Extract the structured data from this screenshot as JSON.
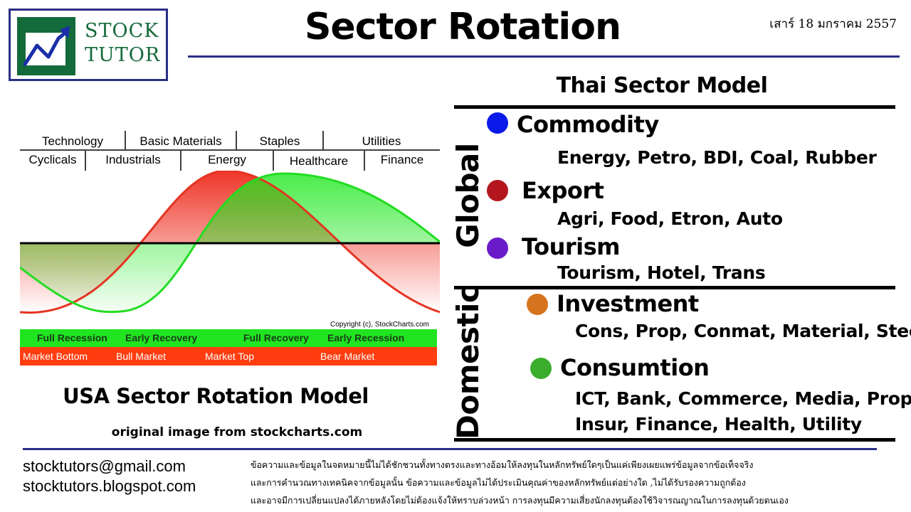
{
  "logo": {
    "line1": "STOCK",
    "line2": "TUTOR",
    "icon": "rising-chart-arrow-icon"
  },
  "title": "Sector Rotation",
  "date": "เสาร์ 18 มกราคม 2557",
  "usa_model": {
    "sectors_top": [
      "Technology",
      "Basic Materials",
      "Staples",
      "Utilities"
    ],
    "sectors_bottom": [
      "Cyclicals",
      "Industrials",
      "Energy",
      "Healthcare",
      "Finance"
    ],
    "copyright": "Copyright (c), StockCharts.com",
    "phases": [
      "Full Recession",
      "Early Recovery",
      "Full Recovery",
      "Early Recession"
    ],
    "markets": [
      "Market Bottom",
      "Bull Market",
      "Market Top",
      "Bear Market"
    ],
    "caption": "USA Sector Rotation Model",
    "source": "original image from stockcharts.com",
    "colors": {
      "market_curve": "#e53423",
      "economy_curve": "#22dd22",
      "phase_bar": "#21e421",
      "market_bar": "#ff3d10"
    }
  },
  "thai_model": {
    "title": "Thai Sector Model",
    "global_label": "Global",
    "domestic_label": "Domestic",
    "groups": [
      {
        "name": "Commodity",
        "items": "Energy, Petro, BDI, Coal, Rubber",
        "color": "#0a1ae8"
      },
      {
        "name": "Export",
        "items": "Agri, Food, Etron, Auto",
        "color": "#b3161e"
      },
      {
        "name": "Tourism",
        "items": "Tourism, Hotel, Trans",
        "color": "#6a1bc9"
      },
      {
        "name": "Investment",
        "items": "Cons, Prop, Conmat, Material, Steel",
        "color": "#d5741c"
      },
      {
        "name": "Consumtion",
        "items_line1": "ICT, Bank, Commerce, Media, Prop,",
        "items_line2": "Insur, Finance, Health, Utility",
        "color": "#3aad2c"
      }
    ]
  },
  "footer": {
    "email": "stocktutors@gmail.com",
    "blog": "stocktutors.blogspot.com",
    "disclaimer": [
      "ข้อความและข้อมูลในจดหมายนี้ไม่ได้ชักชวนทั้งทางตรงและทางอ้อมให้ลงทุนในหลักทรัพย์ใดๆเป็นแค่เพียงเผยแพร่ข้อมูลจากข้อเท็จจริง",
      "และการคำนวณทางเทคนิคจากข้อมูลนั้น ข้อความและข้อมูลไม่ได้ประเมินคุณค่าของหลักทรัพย์แต่อย่างใด ,ไม่ได้รับรองความถูกต้อง",
      "และอาจมีการเปลี่ยนแปลงได้ภายหลังโดยไม่ต้องแจ้งให้ทราบล่วงหน้า การลงทุนมีความเสี่ยงนักลงทุนต้องใช้วิจารณญาณในการลงทุนด้วยตนเอง"
    ]
  }
}
